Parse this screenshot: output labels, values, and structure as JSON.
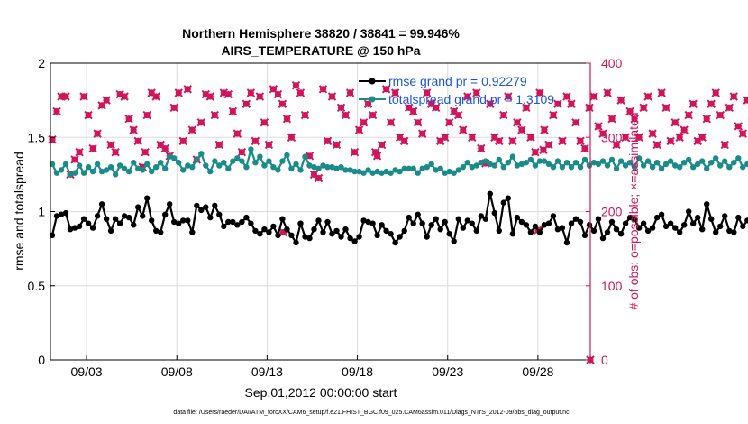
{
  "chart_data": {
    "type": "line",
    "title_line1": "Northern Hemisphere 38820 / 38841 = 99.946%",
    "title_line2": "AIRS_TEMPERATURE @ 150 hPa",
    "xlabel": "Sep.01,2012 00:00:00 start",
    "ylabel_left": "rmse and totalspread",
    "ylabel_right": "# of obs: o=possible; ×=assimilated",
    "footer": "data file: /Users/raeder/DAI/ATM_forcXX/CAM6_setup/f.e21.FHIST_BGC.f09_025.CAM6assim.011/Diags_NTrS_2012-09/obs_diag_output.nc",
    "x_tick_labels": [
      "09/03",
      "09/08",
      "09/13",
      "09/18",
      "09/23",
      "09/28"
    ],
    "x_tick_days": [
      2,
      7,
      12,
      17,
      22,
      27
    ],
    "xlim_days": [
      0,
      29.9
    ],
    "left_axis": {
      "ylim": [
        0,
        2
      ],
      "ticks": [
        0,
        0.5,
        1,
        1.5,
        2
      ],
      "tick_labels": [
        "0",
        "0.5",
        "1",
        "1.5",
        "2"
      ]
    },
    "right_axis": {
      "ylim": [
        0,
        400
      ],
      "ticks": [
        0,
        100,
        200,
        300,
        400
      ],
      "tick_labels": [
        "0",
        "100",
        "200",
        "300",
        "400"
      ]
    },
    "legend": {
      "location": "top-right",
      "entries": [
        {
          "label": "rmse grand pr = 0.92279",
          "color": "#000000"
        },
        {
          "label": "totalspread grand pr = 1.3109",
          "color": "#1a8b8b"
        }
      ],
      "text_color": "#1a55e0"
    },
    "colors": {
      "rmse": "#000000",
      "totalspread": "#1a8b8b",
      "obs": "#d0155a",
      "grid": "#dcdcdc"
    },
    "time_step_days": 0.25,
    "series": [
      {
        "name": "rmse",
        "axis": "left",
        "values": [
          0.84,
          0.97,
          0.98,
          0.99,
          0.88,
          0.89,
          0.9,
          0.95,
          0.92,
          0.89,
          0.97,
          1.05,
          0.95,
          0.87,
          0.95,
          0.92,
          0.97,
          0.96,
          0.91,
          1.03,
          0.97,
          1.09,
          0.94,
          0.87,
          0.86,
          0.98,
          1.05,
          0.93,
          0.92,
          0.94,
          0.94,
          0.86,
          1.04,
          1.01,
          1.03,
          0.96,
          1.04,
          0.98,
          0.9,
          0.93,
          0.93,
          0.91,
          0.93,
          0.96,
          0.92,
          0.87,
          0.85,
          0.88,
          0.86,
          0.9,
          0.84,
          0.95,
          0.88,
          0.84,
          0.79,
          0.92,
          0.83,
          0.82,
          0.88,
          0.94,
          0.86,
          0.93,
          0.85,
          0.87,
          0.83,
          0.88,
          0.82,
          0.8,
          0.83,
          0.94,
          0.93,
          0.92,
          0.84,
          0.91,
          0.87,
          0.85,
          0.79,
          0.83,
          0.87,
          0.96,
          0.92,
          0.98,
          0.92,
          0.83,
          0.91,
          0.95,
          0.88,
          0.93,
          0.85,
          0.8,
          0.95,
          0.89,
          0.94,
          0.92,
          0.87,
          0.97,
          0.95,
          1.12,
          0.99,
          0.87,
          1.06,
          1.09,
          0.85,
          0.96,
          0.93,
          0.91,
          0.86,
          0.9,
          0.86,
          0.91,
          0.92,
          0.97,
          0.88,
          0.89,
          0.79,
          0.92,
          0.95,
          0.93,
          0.84,
          0.91,
          0.87,
          0.95,
          0.82,
          0.86,
          0.93,
          0.88,
          0.85,
          0.92,
          0.96,
          0.95,
          0.89,
          0.92,
          0.87,
          0.89,
          0.96,
          0.98,
          0.9,
          0.92,
          0.89,
          0.86,
          0.91,
          1.0,
          0.92,
          0.96,
          0.88,
          1.05,
          0.95,
          0.86,
          0.9,
          0.97,
          0.87,
          0.86,
          0.96,
          0.9,
          0.94,
          0.89,
          0.9,
          0.93,
          0.93,
          0.96,
          0.93,
          0.85,
          0.91,
          0.89,
          0.87,
          0.89,
          0.95,
          0.9,
          0.85,
          0.92,
          0.96,
          0.87,
          0.84,
          0.95,
          0.91,
          0.98,
          0.91,
          0.86,
          0.96,
          0.93,
          1.04,
          0.87,
          0.87,
          0.92,
          0.85,
          0.94,
          0.9,
          0.9,
          0.92,
          0.89,
          0.88,
          0.93,
          0.9,
          1.07,
          0.84,
          0.8,
          0.82,
          0.86,
          0.91,
          0.92,
          0.9,
          0.91,
          0.89,
          0.93,
          1.07,
          0.83,
          0.82
        ]
      },
      {
        "name": "totalspread",
        "axis": "left",
        "values": [
          1.32,
          1.26,
          1.28,
          1.32,
          1.25,
          1.26,
          1.31,
          1.26,
          1.3,
          1.27,
          1.32,
          1.27,
          1.28,
          1.3,
          1.25,
          1.31,
          1.29,
          1.27,
          1.33,
          1.29,
          1.28,
          1.32,
          1.27,
          1.3,
          1.33,
          1.29,
          1.37,
          1.36,
          1.33,
          1.28,
          1.31,
          1.3,
          1.35,
          1.39,
          1.31,
          1.27,
          1.34,
          1.31,
          1.33,
          1.29,
          1.34,
          1.36,
          1.34,
          1.3,
          1.42,
          1.33,
          1.37,
          1.31,
          1.34,
          1.3,
          1.28,
          1.34,
          1.38,
          1.29,
          1.32,
          1.28,
          1.37,
          1.31,
          1.3,
          1.29,
          1.31,
          1.3,
          1.3,
          1.29,
          1.3,
          1.28,
          1.28,
          1.27,
          1.27,
          1.26,
          1.28,
          1.26,
          1.27,
          1.26,
          1.27,
          1.26,
          1.28,
          1.27,
          1.29,
          1.29,
          1.29,
          1.26,
          1.29,
          1.3,
          1.32,
          1.28,
          1.29,
          1.26,
          1.27,
          1.26,
          1.28,
          1.3,
          1.33,
          1.3,
          1.31,
          1.33,
          1.34,
          1.32,
          1.31,
          1.35,
          1.3,
          1.33,
          1.37,
          1.31,
          1.32,
          1.33,
          1.35,
          1.31,
          1.34,
          1.34,
          1.32,
          1.3,
          1.34,
          1.3,
          1.33,
          1.3,
          1.33,
          1.3,
          1.35,
          1.31,
          1.33,
          1.32,
          1.34,
          1.31,
          1.35,
          1.29,
          1.34,
          1.31,
          1.33,
          1.3,
          1.36,
          1.31,
          1.34,
          1.3,
          1.33,
          1.29,
          1.32,
          1.34,
          1.31,
          1.3,
          1.33,
          1.35,
          1.3,
          1.32,
          1.34,
          1.29,
          1.33,
          1.36,
          1.31,
          1.34,
          1.3,
          1.33,
          1.36,
          1.3,
          1.32,
          1.35,
          1.29,
          1.33,
          1.37,
          1.31,
          1.34,
          1.31,
          1.29,
          1.35,
          1.31,
          1.33,
          1.29,
          1.34,
          1.31,
          1.3,
          1.34,
          1.3,
          1.33,
          1.3,
          1.34,
          1.32,
          1.29,
          1.34,
          1.31,
          1.35,
          1.29,
          1.33,
          1.31,
          1.34,
          1.3,
          1.36,
          1.31,
          1.33,
          1.4,
          1.3,
          1.34,
          1.31,
          1.29,
          1.34,
          1.31,
          1.33,
          1.3,
          1.35,
          1.3,
          1.33,
          1.31,
          1.34,
          1.3,
          1.33,
          1.29,
          1.34,
          1.32,
          1.3,
          1.35,
          1.31,
          1.33,
          1.29,
          1.34,
          1.31,
          1.33,
          1.3,
          1.31,
          1.3
        ]
      },
      {
        "name": "obs_possible_and_assimilated",
        "axis": "right",
        "marker": "x-o overlapping",
        "values": [
          297,
          335,
          355,
          355,
          250,
          270,
          280,
          355,
          330,
          285,
          305,
          343,
          350,
          290,
          280,
          358,
          355,
          325,
          310,
          295,
          260,
          330,
          360,
          355,
          290,
          285,
          275,
          340,
          360,
          295,
          365,
          310,
          270,
          320,
          358,
          355,
          330,
          290,
          360,
          358,
          335,
          305,
          280,
          345,
          360,
          295,
          355,
          320,
          290,
          365,
          358,
          345,
          325,
          300,
          370,
          360,
          330,
          275,
          250,
          245,
          365,
          295,
          355,
          290,
          340,
          330,
          360,
          280,
          310,
          320,
          345,
          330,
          275,
          290,
          365,
          320,
          360,
          300,
          295,
          340,
          335,
          320,
          305,
          360,
          345,
          340,
          295,
          300,
          320,
          335,
          330,
          310,
          355,
          300,
          360,
          285,
          265,
          345,
          300,
          295,
          330,
          355,
          295,
          320,
          310,
          340,
          300,
          280,
          360,
          310,
          290,
          330,
          345,
          295,
          355,
          345,
          320,
          295,
          285,
          340,
          355,
          315,
          305,
          360,
          325,
          290,
          350,
          300,
          335,
          325,
          300,
          340,
          355,
          305,
          290,
          360,
          340,
          295,
          320,
          300,
          310,
          330,
          345,
          295,
          300,
          325,
          345,
          360,
          330,
          290,
          340,
          355,
          315,
          305,
          350,
          320,
          295,
          335,
          360,
          315,
          295,
          330,
          300,
          345,
          335,
          295,
          315,
          340,
          305,
          300,
          355,
          325,
          330,
          345,
          295,
          305,
          355,
          320,
          300,
          340,
          330,
          290,
          360,
          345,
          310,
          300,
          340,
          350,
          320,
          330,
          305,
          315,
          290,
          335,
          345,
          360,
          300,
          280,
          355,
          330,
          305,
          320,
          360,
          345,
          340,
          290,
          310,
          355,
          300,
          340,
          330,
          310,
          355,
          335,
          340,
          355
        ]
      }
    ],
    "obs_low_points": [
      {
        "day": 5.25,
        "value": 280
      },
      {
        "day": 12.9,
        "value": 172
      },
      {
        "day": 18.0,
        "value": 280
      },
      {
        "day": 27.0,
        "value": 175
      },
      {
        "day": 27.3,
        "value": 283
      },
      {
        "day": 29.9,
        "value": 0
      }
    ]
  }
}
